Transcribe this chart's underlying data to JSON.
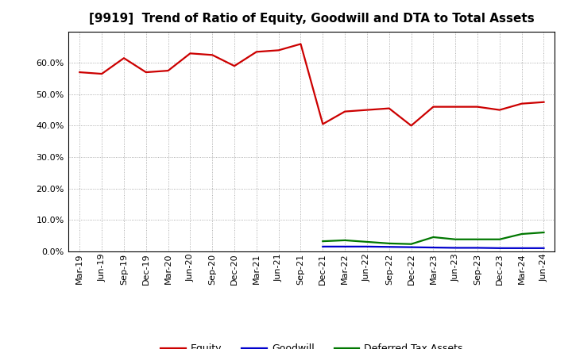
{
  "title": "[9919]  Trend of Ratio of Equity, Goodwill and DTA to Total Assets",
  "x_labels": [
    "Mar-19",
    "Jun-19",
    "Sep-19",
    "Dec-19",
    "Mar-20",
    "Jun-20",
    "Sep-20",
    "Dec-20",
    "Mar-21",
    "Jun-21",
    "Sep-21",
    "Dec-21",
    "Mar-22",
    "Jun-22",
    "Sep-22",
    "Dec-22",
    "Mar-23",
    "Jun-23",
    "Sep-23",
    "Dec-23",
    "Mar-24",
    "Jun-24"
  ],
  "equity": [
    57.0,
    56.5,
    61.5,
    57.0,
    57.5,
    63.0,
    62.5,
    59.0,
    63.5,
    64.0,
    66.0,
    40.5,
    44.5,
    45.0,
    45.5,
    40.0,
    46.0,
    46.0,
    46.0,
    45.0,
    47.0,
    47.5
  ],
  "goodwill": [
    null,
    null,
    null,
    null,
    null,
    null,
    null,
    null,
    null,
    null,
    null,
    1.5,
    1.5,
    1.5,
    1.4,
    1.3,
    1.2,
    1.1,
    1.1,
    1.0,
    1.0,
    1.0
  ],
  "dta": [
    null,
    null,
    null,
    null,
    null,
    null,
    null,
    null,
    null,
    null,
    null,
    3.2,
    3.5,
    3.0,
    2.5,
    2.3,
    4.5,
    3.8,
    3.8,
    3.8,
    5.5,
    6.0
  ],
  "equity_color": "#cc0000",
  "goodwill_color": "#0000cc",
  "dta_color": "#007700",
  "background_color": "#ffffff",
  "plot_bg_color": "#ffffff",
  "grid_color": "#999999",
  "ylim": [
    0,
    70
  ],
  "yticks": [
    0,
    10,
    20,
    30,
    40,
    50,
    60
  ],
  "legend_labels": [
    "Equity",
    "Goodwill",
    "Deferred Tax Assets"
  ],
  "line_width": 1.6,
  "title_fontsize": 11,
  "tick_fontsize": 8,
  "legend_fontsize": 9
}
